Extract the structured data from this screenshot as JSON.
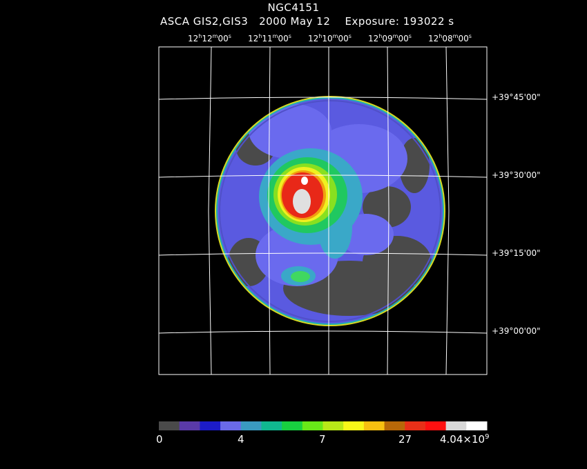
{
  "header": {
    "object": "NGC4151",
    "subtitle": "ASCA GIS2,GIS3   2000 May 12    Exposure: 193022 s"
  },
  "ra_ticks": [
    {
      "h": "12",
      "m": "12",
      "s": "00"
    },
    {
      "h": "12",
      "m": "11",
      "s": "00"
    },
    {
      "h": "12",
      "m": "10",
      "s": "00"
    },
    {
      "h": "12",
      "m": "09",
      "s": "00"
    },
    {
      "h": "12",
      "m": "08",
      "s": "00"
    }
  ],
  "dec_ticks": [
    "+39°45'00\"",
    "+39°30'00\"",
    "+39°15'00\"",
    "+39°00'00\""
  ],
  "colorbar": {
    "colors": [
      "#4a4a4a",
      "#5a3aa8",
      "#1c1cc8",
      "#6a6ae8",
      "#3a9ac0",
      "#10b890",
      "#18d040",
      "#68e818",
      "#b8e818",
      "#f8f818",
      "#f8c010",
      "#b86808",
      "#e83018",
      "#ff1010",
      "#d8d8d8",
      "#ffffff"
    ],
    "labels": {
      "l0": "0",
      "l1": "4",
      "l2": "7",
      "l3": "27",
      "l4_base": "4.04×10",
      "l4_exp": "9"
    }
  },
  "image_colors": {
    "outer": "#5555dd",
    "low": "#4a4a4a",
    "mid": "#6868ea",
    "cyan": "#3aa8c8",
    "green": "#20c860",
    "lime": "#88e020",
    "yellow": "#f0f020",
    "orange": "#f0a010",
    "red": "#e82818",
    "peak": "#e0e0e0"
  }
}
